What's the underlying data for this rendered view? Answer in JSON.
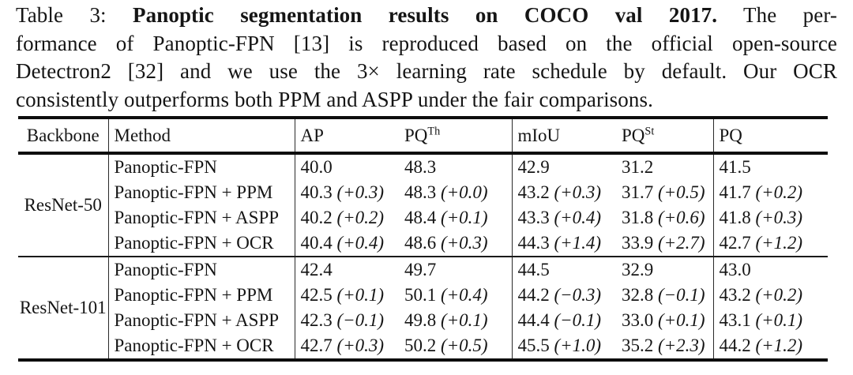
{
  "caption": {
    "lines": [
      {
        "segments": [
          {
            "text": "Table 3: ",
            "bold": false
          },
          {
            "text": "Panoptic segmentation results on COCO val 2017.",
            "bold": true
          },
          {
            "text": " The per-",
            "bold": false
          }
        ]
      },
      {
        "segments": [
          {
            "text": "formance of Panoptic-FPN [13] is reproduced based on the official open-source",
            "bold": false
          }
        ]
      },
      {
        "segments": [
          {
            "text": "Detectron2 [32] and we use the 3× learning rate schedule by default. Our OCR",
            "bold": false
          }
        ]
      },
      {
        "segments": [
          {
            "text": "consistently outperforms both PPM and ASPP under the fair comparisons.",
            "bold": false
          }
        ]
      }
    ]
  },
  "table": {
    "headers": {
      "backbone": "Backbone",
      "method": "Method",
      "ap": "AP",
      "pq_th_base": "PQ",
      "pq_th_sup": "Th",
      "miou": "mIoU",
      "pq_st_base": "PQ",
      "pq_st_sup": "St",
      "pq": "PQ"
    },
    "groups": [
      {
        "backbone": "ResNet-50",
        "rows": [
          {
            "method": "Panoptic-FPN",
            "ap": {
              "v": "40.0",
              "d": ""
            },
            "pq_th": {
              "v": "48.3",
              "d": ""
            },
            "miou": {
              "v": "42.9",
              "d": ""
            },
            "pq_st": {
              "v": "31.2",
              "d": ""
            },
            "pq": {
              "v": "41.5",
              "d": ""
            }
          },
          {
            "method": "Panoptic-FPN + PPM",
            "ap": {
              "v": "40.3",
              "d": "(+0.3)"
            },
            "pq_th": {
              "v": "48.3",
              "d": "(+0.0)"
            },
            "miou": {
              "v": "43.2",
              "d": "(+0.3)"
            },
            "pq_st": {
              "v": "31.7",
              "d": "(+0.5)"
            },
            "pq": {
              "v": "41.7",
              "d": "(+0.2)"
            }
          },
          {
            "method": "Panoptic-FPN + ASPP",
            "ap": {
              "v": "40.2",
              "d": "(+0.2)"
            },
            "pq_th": {
              "v": "48.4",
              "d": "(+0.1)"
            },
            "miou": {
              "v": "43.3",
              "d": "(+0.4)"
            },
            "pq_st": {
              "v": "31.8",
              "d": "(+0.6)"
            },
            "pq": {
              "v": "41.8",
              "d": "(+0.3)"
            }
          },
          {
            "method": "Panoptic-FPN + OCR",
            "ap": {
              "v": "40.4",
              "d": "(+0.4)"
            },
            "pq_th": {
              "v": "48.6",
              "d": "(+0.3)"
            },
            "miou": {
              "v": "44.3",
              "d": "(+1.4)"
            },
            "pq_st": {
              "v": "33.9",
              "d": "(+2.7)"
            },
            "pq": {
              "v": "42.7",
              "d": "(+1.2)"
            }
          }
        ]
      },
      {
        "backbone": "ResNet-101",
        "rows": [
          {
            "method": "Panoptic-FPN",
            "ap": {
              "v": "42.4",
              "d": ""
            },
            "pq_th": {
              "v": "49.7",
              "d": ""
            },
            "miou": {
              "v": "44.5",
              "d": ""
            },
            "pq_st": {
              "v": "32.9",
              "d": ""
            },
            "pq": {
              "v": "43.0",
              "d": ""
            }
          },
          {
            "method": "Panoptic-FPN + PPM",
            "ap": {
              "v": "42.5",
              "d": "(+0.1)"
            },
            "pq_th": {
              "v": "50.1",
              "d": "(+0.4)"
            },
            "miou": {
              "v": "44.2",
              "d": "(−0.3)"
            },
            "pq_st": {
              "v": "32.8",
              "d": "(−0.1)"
            },
            "pq": {
              "v": "43.2",
              "d": "(+0.2)"
            }
          },
          {
            "method": "Panoptic-FPN + ASPP",
            "ap": {
              "v": "42.3",
              "d": "(−0.1)"
            },
            "pq_th": {
              "v": "49.8",
              "d": "(+0.1)"
            },
            "miou": {
              "v": "44.4",
              "d": "(−0.1)"
            },
            "pq_st": {
              "v": "33.0",
              "d": "(+0.1)"
            },
            "pq": {
              "v": "43.1",
              "d": "(+0.1)"
            }
          },
          {
            "method": "Panoptic-FPN + OCR",
            "ap": {
              "v": "42.7",
              "d": "(+0.3)"
            },
            "pq_th": {
              "v": "50.2",
              "d": "(+0.5)"
            },
            "miou": {
              "v": "45.5",
              "d": "(+1.0)"
            },
            "pq_st": {
              "v": "35.2",
              "d": "(+2.3)"
            },
            "pq": {
              "v": "44.2",
              "d": "(+1.2)"
            }
          }
        ]
      }
    ]
  }
}
